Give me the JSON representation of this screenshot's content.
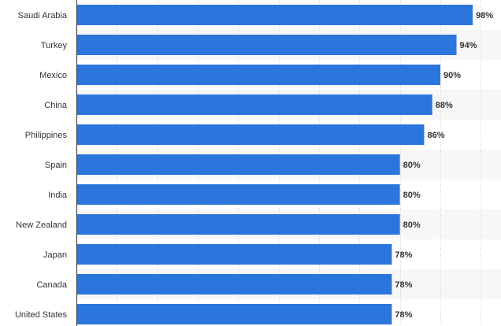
{
  "chart_data": {
    "type": "bar",
    "orientation": "horizontal",
    "categories": [
      "Saudi Arabia",
      "Turkey",
      "Mexico",
      "China",
      "Philippines",
      "Spain",
      "India",
      "New Zealand",
      "Japan",
      "Canada",
      "United States"
    ],
    "values": [
      98,
      94,
      90,
      88,
      86,
      80,
      80,
      80,
      78,
      78,
      78
    ],
    "value_labels": [
      "98%",
      "94%",
      "90%",
      "88%",
      "86%",
      "80%",
      "80%",
      "80%",
      "78%",
      "78%",
      "78%"
    ],
    "title": "",
    "xlabel": "",
    "ylabel": "",
    "xlim": [
      0,
      105
    ],
    "grid": true,
    "bar_color": "#2a76dd",
    "stripe_color": "#f7f7f7",
    "grid_color": "#cfcfcf",
    "axis_color": "#333333"
  }
}
